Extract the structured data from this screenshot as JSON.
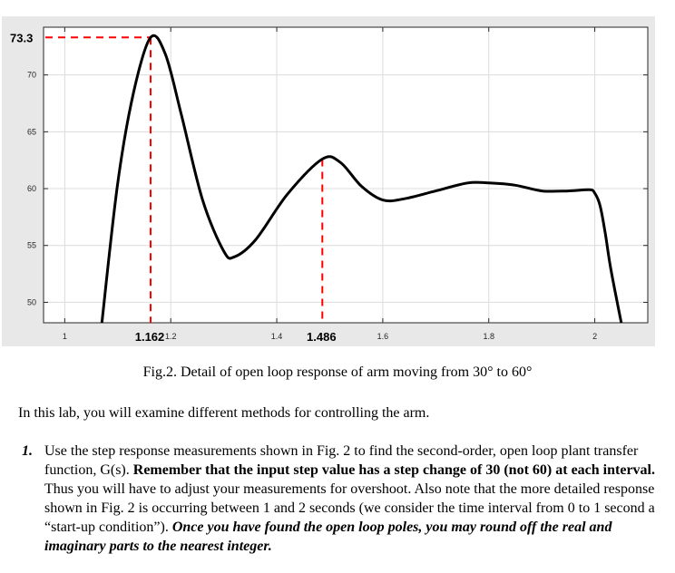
{
  "chart_data": {
    "type": "line",
    "xlim": [
      0.96,
      2.1
    ],
    "ylim": [
      48.2,
      74.2
    ],
    "x_ticks": [
      1,
      1.2,
      1.4,
      1.6,
      1.8,
      2
    ],
    "x_tick_labels": [
      "1",
      "1.2",
      "1.4",
      "1.6",
      "1.8",
      "2"
    ],
    "y_ticks": [
      50,
      55,
      60,
      65,
      70
    ],
    "y_tick_labels": [
      "50",
      "55",
      "60",
      "65",
      "70"
    ],
    "grid": true,
    "series": [
      {
        "x": [
          1.07,
          1.1,
          1.13,
          1.162,
          1.19,
          1.22,
          1.26,
          1.3,
          1.32,
          1.36,
          1.42,
          1.486,
          1.52,
          1.56,
          1.6,
          1.64,
          1.7,
          1.76,
          1.8,
          1.85,
          1.9,
          1.95,
          1.99,
          2.0,
          2.01,
          2.02,
          2.03,
          2.05
        ],
        "y": [
          48.2,
          60.5,
          68.5,
          73.3,
          71.8,
          66.5,
          59.0,
          54.5,
          54.0,
          55.5,
          59.5,
          62.6,
          62.3,
          60.2,
          59.0,
          59.1,
          59.8,
          60.5,
          60.5,
          60.3,
          59.8,
          59.8,
          59.9,
          59.6,
          58.5,
          56.0,
          53.0,
          48.2
        ]
      }
    ],
    "annotations": [
      {
        "x": 1.162,
        "y": 73.3,
        "x_label": "1.162",
        "y_label": "73.3"
      },
      {
        "x": 1.486,
        "y": 62.6,
        "x_label": "1.486"
      }
    ]
  },
  "caption": "Fig.2. Detail of open loop response of arm moving from 30° to 60°",
  "intro": "In this lab, you will examine different methods for controlling the arm.",
  "question": {
    "number": "1.",
    "part1": "Use the step response measurements shown in Fig. 2 to find the second-order, open loop plant transfer function, G(s).",
    "part2": "Remember that the input step value has a step change of 30 (not 60) at each interval.",
    "part3": "Thus you will have to adjust your measurements for overshoot. Also note that the more detailed response shown in Fig. 2 is occurring between 1 and 2 seconds (we consider the time interval from 0 to 1 second a “start-up condition”).",
    "part4": "Once you have found the open loop poles, you may round off the real and imaginary parts to the nearest integer."
  }
}
